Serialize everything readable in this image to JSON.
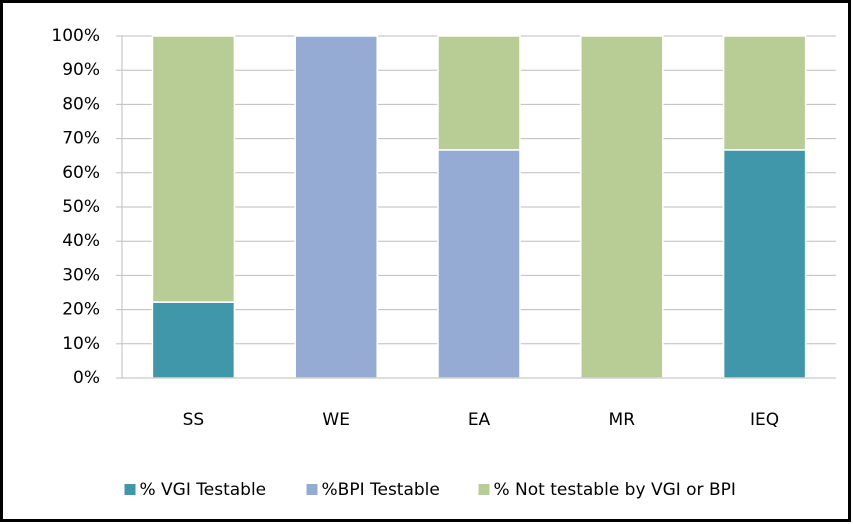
{
  "chart_data": {
    "type": "stacked_bar",
    "categories": [
      "SS",
      "WE",
      "EA",
      "MR",
      "IEQ"
    ],
    "series": [
      {
        "name": "% VGI Testable",
        "color": "#4097aa",
        "values": [
          22.2,
          0,
          0,
          0,
          66.7
        ]
      },
      {
        "name": "%BPI Testable",
        "color": "#95abd3",
        "values": [
          0,
          100,
          66.7,
          0,
          0
        ]
      },
      {
        "name": "% Not testable by VGI or BPI",
        "color": "#b8cd95",
        "values": [
          77.8,
          0,
          33.3,
          100,
          33.3
        ]
      }
    ],
    "ylim": [
      0,
      100
    ],
    "yticks": [
      {
        "value": 0,
        "label": "0%"
      },
      {
        "value": 10,
        "label": "10%"
      },
      {
        "value": 20,
        "label": "20%"
      },
      {
        "value": 30,
        "label": "30%"
      },
      {
        "value": 40,
        "label": "40%"
      },
      {
        "value": 50,
        "label": "50%"
      },
      {
        "value": 60,
        "label": "60%"
      },
      {
        "value": 70,
        "label": "70%"
      },
      {
        "value": 80,
        "label": "80%"
      },
      {
        "value": 90,
        "label": "90%"
      },
      {
        "value": 100,
        "label": "100%"
      }
    ],
    "grid": true,
    "legend": "bottom"
  }
}
